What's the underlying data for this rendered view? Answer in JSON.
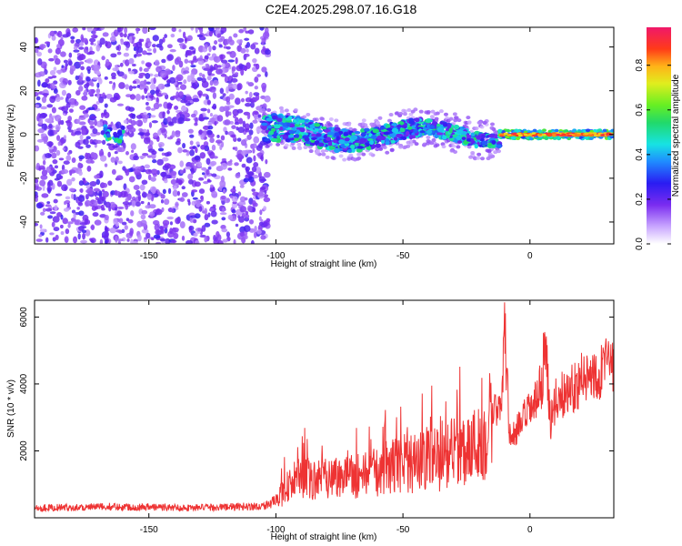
{
  "title": "C2E4.2025.298.07.16.G18",
  "chart_data": [
    {
      "type": "heatmap",
      "xlabel": "Height of straight line (km)",
      "ylabel": "Frequency (Hz)",
      "xlim": [
        -195,
        33
      ],
      "ylim": [
        -50,
        49
      ],
      "x_ticks": [
        -150,
        -100,
        -50,
        0
      ],
      "x_tick_labels": [
        "-150",
        "-100",
        "-50",
        "0"
      ],
      "y_ticks": [
        -40,
        -20,
        0,
        20,
        40
      ],
      "y_tick_labels": [
        "-40",
        "-20",
        "0",
        "20",
        "40"
      ],
      "colorbar": {
        "label": "Normalized spectral amplitude",
        "range": [
          0,
          0.97
        ],
        "ticks": [
          0,
          0.2,
          0.4,
          0.6,
          0.8
        ],
        "tick_labels": [
          "0.0",
          "0.2",
          "0.4",
          "0.6",
          "0.8"
        ]
      },
      "regions": [
        {
          "x": [
            -195,
            -103
          ],
          "y": [
            -50,
            49
          ],
          "level": 0.2,
          "description": "scattered noise speckle"
        },
        {
          "x": [
            -168,
            -160
          ],
          "y": [
            -4,
            4
          ],
          "level": 0.4
        },
        {
          "x": [
            -105,
            -12
          ],
          "y": [
            -8,
            8
          ],
          "level": 0.55,
          "ridge": "wavy"
        },
        {
          "x": [
            -12,
            33
          ],
          "y": [
            -2,
            2
          ],
          "level": 0.9
        }
      ],
      "grid": false
    },
    {
      "type": "line",
      "xlabel": "Height of straight line (km)",
      "ylabel": "SNR (10 * v/v)",
      "xlim": [
        -195,
        33
      ],
      "ylim": [
        0,
        6500
      ],
      "x_ticks": [
        -150,
        -100,
        -50,
        0
      ],
      "x_tick_labels": [
        "-150",
        "-100",
        "-50",
        "0"
      ],
      "y_ticks": [
        2000,
        4000,
        6000
      ],
      "y_tick_labels": [
        "2000",
        "4000",
        "6000"
      ],
      "color": "#ee3333",
      "series": [
        {
          "x": [
            -195,
            -180,
            -165,
            -150,
            -135,
            -120,
            -105,
            -100,
            -95,
            -90,
            -85,
            -80,
            -75,
            -70,
            -65,
            -60,
            -55,
            -50,
            -45,
            -40,
            -35,
            -30,
            -25,
            -20,
            -17,
            -14,
            -11,
            -10,
            -8,
            -5,
            -2,
            0,
            3,
            5,
            6,
            8,
            10,
            15,
            20,
            25,
            30,
            33
          ],
          "values": [
            300,
            310,
            330,
            320,
            300,
            320,
            350,
            500,
            1000,
            1200,
            1100,
            1300,
            1200,
            1250,
            1300,
            1350,
            1500,
            1700,
            1600,
            1800,
            1700,
            2000,
            2100,
            2200,
            2500,
            3100,
            3600,
            5800,
            2400,
            2600,
            3000,
            3200,
            3500,
            4200,
            5700,
            2800,
            3500,
            3800,
            4100,
            4300,
            4500,
            4600
          ]
        }
      ],
      "grid": false
    }
  ]
}
